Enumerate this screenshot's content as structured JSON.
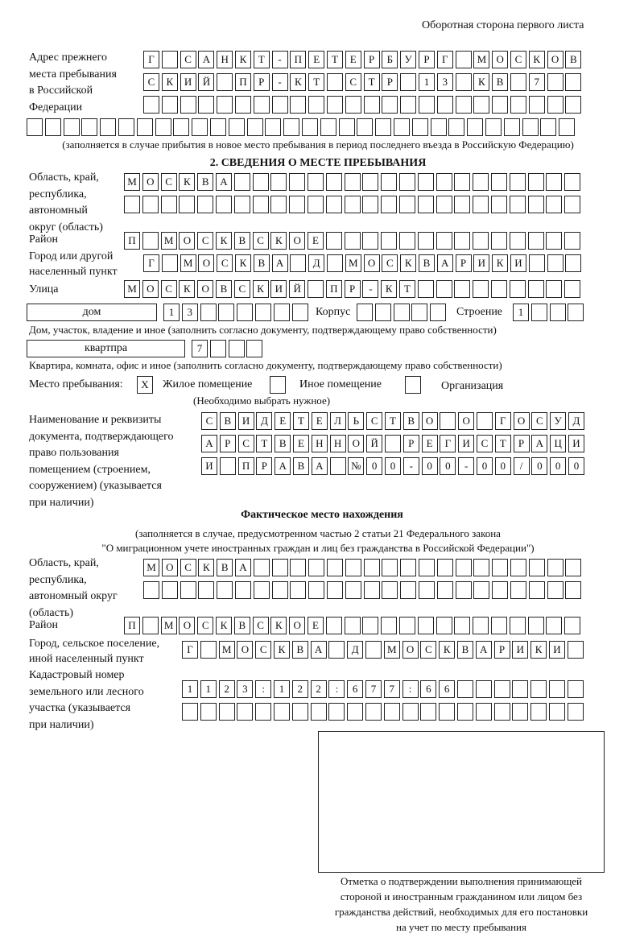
{
  "header": {
    "side_note": "Оборотная сторона первого листа"
  },
  "prev_address": {
    "label": "Адрес прежнего\nместа пребывания\nв Российской\nФедерации",
    "rows": [
      [
        "Г",
        "",
        "С",
        "А",
        "Н",
        "К",
        "Т",
        "-",
        "П",
        "Е",
        "Т",
        "Е",
        "Р",
        "Б",
        "У",
        "Р",
        "Г",
        "",
        "М",
        "О",
        "С",
        "К",
        "О",
        "В"
      ],
      [
        "С",
        "К",
        "И",
        "Й",
        "",
        "П",
        "Р",
        "-",
        "К",
        "Т",
        "",
        "С",
        "Т",
        "Р",
        "",
        "1",
        "3",
        "",
        "К",
        "В",
        "",
        "7",
        "",
        ""
      ],
      [
        "",
        "",
        "",
        "",
        "",
        "",
        "",
        "",
        "",
        "",
        "",
        "",
        "",
        "",
        "",
        "",
        "",
        "",
        "",
        "",
        "",
        "",
        "",
        ""
      ],
      [
        "",
        "",
        "",
        "",
        "",
        "",
        "",
        "",
        "",
        "",
        "",
        "",
        "",
        "",
        "",
        "",
        "",
        "",
        "",
        "",
        "",
        "",
        "",
        "",
        "",
        "",
        "",
        "",
        "",
        ""
      ]
    ],
    "note": "(заполняется в случае прибытия в новое место пребывания в период последнего въезда в Российскую Федерацию)"
  },
  "section2": {
    "title": "2. СВЕДЕНИЯ О МЕСТЕ ПРЕБЫВАНИЯ",
    "region_label": "Область, край,\nреспублика,\nавтономный\nокруг (область)",
    "region_rows": [
      [
        "М",
        "О",
        "С",
        "К",
        "В",
        "А",
        "",
        "",
        "",
        "",
        "",
        "",
        "",
        "",
        "",
        "",
        "",
        "",
        "",
        "",
        "",
        "",
        "",
        "",
        ""
      ],
      [
        "",
        "",
        "",
        "",
        "",
        "",
        "",
        "",
        "",
        "",
        "",
        "",
        "",
        "",
        "",
        "",
        "",
        "",
        "",
        "",
        "",
        "",
        "",
        "",
        ""
      ]
    ],
    "district_label": "Район",
    "district_row": [
      "П",
      "",
      "М",
      "О",
      "С",
      "К",
      "В",
      "С",
      "К",
      "О",
      "Е",
      "",
      "",
      "",
      "",
      "",
      "",
      "",
      "",
      "",
      "",
      "",
      "",
      "",
      ""
    ],
    "city_label": "Город или другой\nнаселенный пункт",
    "city_row": [
      "Г",
      "",
      "М",
      "О",
      "С",
      "К",
      "В",
      "А",
      "",
      "Д",
      "",
      "М",
      "О",
      "С",
      "К",
      "В",
      "А",
      "Р",
      "И",
      "К",
      "И",
      "",
      "",
      ""
    ],
    "street_label": "Улица",
    "street_row": [
      "М",
      "О",
      "С",
      "К",
      "О",
      "В",
      "С",
      "К",
      "И",
      "Й",
      "",
      "П",
      "Р",
      "-",
      "К",
      "Т",
      "",
      "",
      "",
      "",
      "",
      "",
      "",
      "",
      ""
    ],
    "house_type": "дом",
    "house_cells": [
      "1",
      "3",
      "",
      "",
      "",
      "",
      "",
      ""
    ],
    "korpus_label": "Корпус",
    "korpus_cells": [
      "",
      "",
      "",
      "",
      ""
    ],
    "building_label": "Строение",
    "building_cells": [
      "1",
      "",
      "",
      ""
    ],
    "house_note": "Дом, участок, владение и иное (заполнить согласно документу, подтверждающему право собственности)",
    "flat_type": "квартпра",
    "flat_cells": [
      "7",
      "",
      "",
      ""
    ],
    "flat_note": "Квартира, комната, офис и иное (заполнить согласно документу, подтверждающему право собственности)",
    "stay_label": "Место пребывания:",
    "stay_options": [
      {
        "label": "Жилое помещение",
        "mark": "X"
      },
      {
        "label": "Иное помещение",
        "mark": ""
      },
      {
        "label": "Организация",
        "mark": ""
      }
    ],
    "stay_note": "(Необходимо выбрать нужное)",
    "doc_label": "Наименование и реквизиты\nдокумента, подтверждающего\nправо пользования\nпомещением (строением,\nсооружением) (указывается\nпри наличии)",
    "doc_rows": [
      [
        "С",
        "В",
        "И",
        "Д",
        "Е",
        "Т",
        "Е",
        "Л",
        "Ь",
        "С",
        "Т",
        "В",
        "О",
        "",
        "О",
        "",
        "Г",
        "О",
        "С",
        "У",
        "Д"
      ],
      [
        "А",
        "Р",
        "С",
        "Т",
        "В",
        "Е",
        "Н",
        "Н",
        "О",
        "Й",
        "",
        "Р",
        "Е",
        "Г",
        "И",
        "С",
        "Т",
        "Р",
        "А",
        "Ц",
        "И"
      ],
      [
        "И",
        "",
        "П",
        "Р",
        "А",
        "В",
        "А",
        "",
        "№",
        "0",
        "0",
        "-",
        "0",
        "0",
        "-",
        "0",
        "0",
        "/",
        "0",
        "0",
        "0"
      ]
    ]
  },
  "actual": {
    "title": "Фактическое место нахождения",
    "note1": "(заполняется в случае, предусмотренном частью 2 статьи 21 Федерального закона",
    "note2": "\"О миграционном учете иностранных граждан и лиц без гражданства в Российской Федерации\")",
    "region_label": "Область, край,\nреспублика,\nавтономный округ\n(область)",
    "region_rows": [
      [
        "М",
        "О",
        "С",
        "К",
        "В",
        "А",
        "",
        "",
        "",
        "",
        "",
        "",
        "",
        "",
        "",
        "",
        "",
        "",
        "",
        "",
        "",
        "",
        "",
        ""
      ],
      [
        "",
        "",
        "",
        "",
        "",
        "",
        "",
        "",
        "",
        "",
        "",
        "",
        "",
        "",
        "",
        "",
        "",
        "",
        "",
        "",
        "",
        "",
        "",
        ""
      ]
    ],
    "district_label": "Район",
    "district_row": [
      "П",
      "",
      "М",
      "О",
      "С",
      "К",
      "В",
      "С",
      "К",
      "О",
      "Е",
      "",
      "",
      "",
      "",
      "",
      "",
      "",
      "",
      "",
      "",
      "",
      "",
      "",
      ""
    ],
    "city_label": "Город, сельское поселение,\nиной населенный пункт",
    "city_row": [
      "Г",
      "",
      "М",
      "О",
      "С",
      "К",
      "В",
      "А",
      "",
      "Д",
      "",
      "М",
      "О",
      "С",
      "К",
      "В",
      "А",
      "Р",
      "И",
      "К",
      "И",
      ""
    ],
    "cadastral_label": "Кадастровый номер\nземельного или лесного\nучастка (указывается\nпри наличии)",
    "cadastral_rows": [
      [
        "1",
        "1",
        "2",
        "3",
        ":",
        "1",
        "2",
        "2",
        ":",
        "6",
        "7",
        "7",
        ":",
        "6",
        "6",
        "",
        "",
        "",
        "",
        "",
        "",
        ""
      ],
      [
        "",
        "",
        "",
        "",
        "",
        "",
        "",
        "",
        "",
        "",
        "",
        "",
        "",
        "",
        "",
        "",
        "",
        "",
        "",
        "",
        "",
        ""
      ]
    ],
    "stamp_caption": "Отметка о подтверждении выполнения принимающей\nстороной и иностранным гражданином или лицом без\nгражданства действий, необходимых для его постановки\nна учет по месту пребывания"
  }
}
